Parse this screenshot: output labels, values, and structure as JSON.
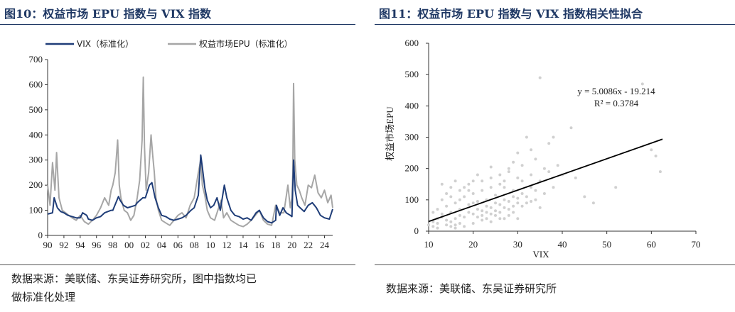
{
  "left": {
    "title": "图10：权益市场 EPU 指数与 VIX 指数",
    "source_lines": [
      "数据来源：美联储、东吴证券研究所，图中指数均已",
      "做标准化处理"
    ]
  },
  "right": {
    "title": "图11：权益市场 EPU 指数与 VIX 指数相关性拟合",
    "source_lines": [
      "数据来源：美联储、东吴证券研究所"
    ]
  },
  "colors": {
    "vix": "#1f3d78",
    "epu": "#a6a6a6",
    "scatter": "#d0d0d0",
    "trend": "#000000",
    "title": "#1f3864"
  },
  "chart_data": [
    {
      "type": "line",
      "ylim": [
        0,
        700
      ],
      "yticks": [
        0,
        100,
        200,
        300,
        400,
        500,
        600,
        700
      ],
      "xlim": [
        1990,
        2025
      ],
      "xtick_labels": [
        "90",
        "92",
        "94",
        "96",
        "98",
        "00",
        "02",
        "04",
        "06",
        "08",
        "10",
        "12",
        "14",
        "16",
        "18",
        "20",
        "22",
        "24"
      ],
      "xtick_years": [
        1990,
        1992,
        1994,
        1996,
        1998,
        2000,
        2002,
        2004,
        2006,
        2008,
        2010,
        2012,
        2014,
        2016,
        2018,
        2020,
        2022,
        2024
      ],
      "legend": [
        "VIX（标准化）",
        "权益市场EPU（标准化）"
      ],
      "legend_position": "top-left",
      "series": [
        {
          "name": "VIX（标准化）",
          "x": [
            1990,
            1990.6,
            1990.8,
            1991.2,
            1991.6,
            1992,
            1992.5,
            1993,
            1993.5,
            1994,
            1994.3,
            1994.8,
            1995,
            1995.5,
            1996,
            1996.5,
            1997,
            1997.8,
            1998,
            1998.7,
            1998.9,
            1999.3,
            1999.8,
            2000.3,
            2000.8,
            2001,
            2001.7,
            2002,
            2002.5,
            2002.8,
            2003.2,
            2003.6,
            2004,
            2004.5,
            2005,
            2005.5,
            2006,
            2006.5,
            2007,
            2007.6,
            2008,
            2008.5,
            2008.8,
            2009,
            2009.3,
            2009.6,
            2010,
            2010.4,
            2010.8,
            2011.2,
            2011.7,
            2012,
            2012.5,
            2013,
            2013.5,
            2014,
            2014.5,
            2015,
            2015.6,
            2016,
            2016.5,
            2017,
            2017.5,
            2018,
            2018.1,
            2018.5,
            2018.9,
            2019.3,
            2019.8,
            2020,
            2020.2,
            2020.4,
            2020.7,
            2021,
            2021.5,
            2022,
            2022.5,
            2023,
            2023.5,
            2024,
            2024.6,
            2025
          ],
          "y": [
            85,
            90,
            150,
            110,
            95,
            90,
            80,
            75,
            70,
            70,
            90,
            80,
            65,
            60,
            70,
            75,
            90,
            100,
            100,
            155,
            140,
            120,
            110,
            115,
            120,
            130,
            150,
            150,
            200,
            210,
            150,
            110,
            80,
            75,
            65,
            60,
            65,
            70,
            80,
            100,
            110,
            160,
            320,
            270,
            190,
            140,
            110,
            120,
            150,
            100,
            200,
            150,
            100,
            80,
            75,
            65,
            70,
            60,
            90,
            100,
            70,
            55,
            50,
            60,
            120,
            80,
            110,
            90,
            80,
            75,
            300,
            180,
            120,
            110,
            95,
            120,
            130,
            110,
            80,
            70,
            65,
            105
          ]
        },
        {
          "name": "权益市场EPU（标准化）",
          "x": [
            1990,
            1990.3,
            1990.6,
            1990.9,
            1991.1,
            1991.4,
            1991.8,
            1992.2,
            1992.6,
            1993,
            1993.5,
            1994,
            1994.5,
            1995,
            1995.5,
            1996,
            1996.5,
            1997,
            1997.5,
            1997.8,
            1998,
            1998.3,
            1998.6,
            1998.8,
            1999,
            1999.4,
            1999.8,
            2000.2,
            2000.6,
            2001,
            2001.3,
            2001.6,
            2001.75,
            2001.9,
            2002.1,
            2002.4,
            2002.7,
            2002.9,
            2003.1,
            2003.3,
            2003.6,
            2004,
            2004.5,
            2005,
            2005.5,
            2006,
            2006.5,
            2007,
            2007.5,
            2008,
            2008.5,
            2008.8,
            2009,
            2009.3,
            2009.6,
            2010,
            2010.5,
            2011,
            2011.3,
            2011.6,
            2012,
            2012.5,
            2013,
            2013.5,
            2014,
            2014.5,
            2015,
            2015.5,
            2016,
            2016.5,
            2017,
            2017.5,
            2018,
            2018.5,
            2019,
            2019.5,
            2019.8,
            2020,
            2020.1,
            2020.2,
            2020.35,
            2020.6,
            2020.9,
            2021.2,
            2021.6,
            2022,
            2022.4,
            2022.8,
            2023.2,
            2023.6,
            2024,
            2024.4,
            2024.8,
            2025
          ],
          "y": [
            200,
            120,
            290,
            180,
            330,
            150,
            100,
            90,
            80,
            70,
            60,
            80,
            55,
            45,
            60,
            80,
            110,
            150,
            120,
            180,
            200,
            250,
            380,
            200,
            150,
            100,
            90,
            60,
            80,
            150,
            220,
            380,
            630,
            350,
            180,
            250,
            400,
            320,
            250,
            150,
            100,
            60,
            50,
            40,
            60,
            80,
            90,
            70,
            120,
            150,
            250,
            300,
            200,
            160,
            100,
            70,
            60,
            110,
            140,
            70,
            90,
            60,
            50,
            40,
            35,
            45,
            60,
            80,
            100,
            60,
            45,
            40,
            120,
            90,
            90,
            200,
            110,
            150,
            250,
            605,
            300,
            200,
            180,
            150,
            120,
            200,
            190,
            240,
            170,
            150,
            180,
            130,
            160,
            110
          ]
        }
      ]
    },
    {
      "type": "scatter",
      "xlabel": "VIX",
      "ylabel": "权益市场EPU",
      "xlim": [
        10,
        70
      ],
      "ylim": [
        0,
        600
      ],
      "xticks": [
        10,
        20,
        30,
        40,
        50,
        60,
        70
      ],
      "yticks": [
        0,
        100,
        200,
        300,
        400,
        500,
        600
      ],
      "trendline": {
        "slope": 5.0086,
        "intercept": -19.214,
        "x_range": [
          10,
          62.5
        ]
      },
      "annotation": [
        "y = 5.0086x - 19.214",
        "R² = 0.3784"
      ],
      "points": [
        [
          12,
          40
        ],
        [
          13,
          55
        ],
        [
          14,
          80
        ],
        [
          15,
          60
        ],
        [
          16,
          90
        ],
        [
          17,
          70
        ],
        [
          18,
          110
        ],
        [
          19,
          85
        ],
        [
          20,
          120
        ],
        [
          21,
          95
        ],
        [
          22,
          130
        ],
        [
          23,
          100
        ],
        [
          24,
          140
        ],
        [
          25,
          115
        ],
        [
          26,
          150
        ],
        [
          27,
          160
        ],
        [
          28,
          190
        ],
        [
          29,
          220
        ],
        [
          30,
          250
        ],
        [
          31,
          210
        ],
        [
          32,
          300
        ],
        [
          33,
          260
        ],
        [
          34,
          230
        ],
        [
          35,
          490
        ],
        [
          36,
          200
        ],
        [
          37,
          280
        ],
        [
          38,
          300
        ],
        [
          40,
          180
        ],
        [
          42,
          330
        ],
        [
          45,
          110
        ],
        [
          47,
          90
        ],
        [
          52,
          140
        ],
        [
          58,
          470
        ],
        [
          60,
          260
        ],
        [
          61,
          240
        ],
        [
          62,
          190
        ],
        [
          11,
          30
        ],
        [
          12,
          25
        ],
        [
          13,
          45
        ],
        [
          14,
          35
        ],
        [
          15,
          30
        ],
        [
          16,
          40
        ],
        [
          17,
          50
        ],
        [
          18,
          45
        ],
        [
          19,
          60
        ],
        [
          20,
          55
        ],
        [
          21,
          70
        ],
        [
          22,
          65
        ],
        [
          23,
          80
        ],
        [
          24,
          75
        ],
        [
          25,
          90
        ],
        [
          26,
          85
        ],
        [
          27,
          100
        ],
        [
          28,
          95
        ],
        [
          29,
          110
        ],
        [
          30,
          105
        ],
        [
          14,
          120
        ],
        [
          15,
          140
        ],
        [
          16,
          160
        ],
        [
          18,
          140
        ],
        [
          19,
          150
        ],
        [
          22,
          160
        ],
        [
          24,
          170
        ],
        [
          26,
          180
        ],
        [
          28,
          200
        ],
        [
          30,
          170
        ],
        [
          33,
          140
        ],
        [
          35,
          160
        ],
        [
          12,
          70
        ],
        [
          13,
          100
        ],
        [
          15,
          110
        ],
        [
          17,
          130
        ],
        [
          20,
          90
        ],
        [
          23,
          60
        ],
        [
          25,
          50
        ],
        [
          27,
          40
        ],
        [
          29,
          60
        ],
        [
          31,
          80
        ],
        [
          34,
          100
        ],
        [
          36,
          120
        ],
        [
          38,
          140
        ],
        [
          11,
          60
        ],
        [
          16,
          20
        ],
        [
          18,
          15
        ],
        [
          20,
          25
        ],
        [
          22,
          35
        ],
        [
          24,
          30
        ],
        [
          26,
          40
        ],
        [
          28,
          50
        ],
        [
          30,
          40
        ],
        [
          32,
          90
        ],
        [
          21,
          180
        ],
        [
          24,
          205
        ],
        [
          27,
          140
        ],
        [
          29,
          130
        ],
        [
          31,
          160
        ],
        [
          33,
          180
        ],
        [
          37,
          190
        ],
        [
          39,
          210
        ],
        [
          43,
          170
        ],
        [
          13,
          150
        ],
        [
          17,
          100
        ],
        [
          19,
          130
        ],
        [
          20,
          160
        ],
        [
          14,
          20
        ],
        [
          15,
          15
        ],
        [
          16,
          10
        ],
        [
          17,
          25
        ],
        [
          12,
          10
        ],
        [
          11,
          15
        ],
        [
          10,
          20
        ],
        [
          21,
          45
        ],
        [
          22,
          50
        ],
        [
          23,
          40
        ],
        [
          24,
          55
        ],
        [
          25,
          65
        ],
        [
          26,
          60
        ],
        [
          27,
          75
        ],
        [
          28,
          70
        ],
        [
          29,
          80
        ],
        [
          30,
          90
        ],
        [
          31,
          120
        ],
        [
          32,
          110
        ],
        [
          33,
          95
        ],
        [
          34,
          130
        ],
        [
          35,
          75
        ]
      ]
    }
  ]
}
